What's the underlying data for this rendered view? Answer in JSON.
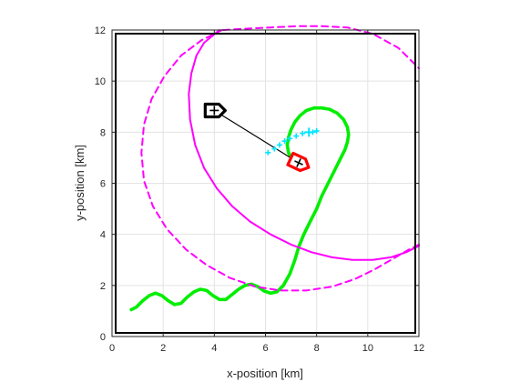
{
  "chart_data": {
    "type": "line",
    "xlabel": "x-position [km]",
    "ylabel": "y-position [km]",
    "xlim": [
      0,
      12
    ],
    "ylim": [
      0,
      12
    ],
    "xticks": [
      0,
      2,
      4,
      6,
      8,
      10,
      12
    ],
    "yticks": [
      0,
      2,
      4,
      6,
      8,
      10,
      12
    ],
    "grid": true,
    "colors": {
      "path": "#00ee00",
      "circles": "#ff00ff",
      "prediction": "#00e5ff",
      "target": "#000000",
      "ownship": "#ff0000"
    },
    "series": [
      {
        "style": "solid",
        "color": "#00ee00",
        "x": [
          0.75,
          0.95,
          1.2,
          1.45,
          1.7,
          1.95,
          2.2,
          2.45,
          2.7,
          2.95,
          3.2,
          3.45,
          3.7,
          3.95,
          4.2,
          4.45,
          4.7,
          4.95,
          5.2,
          5.45,
          5.7,
          5.95,
          6.2,
          6.45,
          6.7,
          6.95,
          7.15,
          7.3,
          7.5,
          7.75,
          8.0,
          8.2,
          8.45,
          8.7,
          8.95,
          9.1,
          9.2,
          9.25,
          9.2,
          9.05,
          8.8,
          8.5,
          8.2,
          7.9,
          7.6,
          7.35,
          7.15,
          7.0,
          6.9,
          6.85,
          6.9,
          7.05
        ],
        "y": [
          1.05,
          1.15,
          1.4,
          1.6,
          1.7,
          1.6,
          1.4,
          1.25,
          1.3,
          1.55,
          1.75,
          1.85,
          1.8,
          1.6,
          1.45,
          1.45,
          1.65,
          1.85,
          2.0,
          2.05,
          1.95,
          1.78,
          1.7,
          1.75,
          2.0,
          2.45,
          3.0,
          3.5,
          4.0,
          4.5,
          5.0,
          5.5,
          6.0,
          6.5,
          7.0,
          7.3,
          7.6,
          7.9,
          8.2,
          8.5,
          8.75,
          8.9,
          8.95,
          8.95,
          8.85,
          8.65,
          8.4,
          8.1,
          7.8,
          7.5,
          7.2,
          6.95
        ]
      },
      {
        "style": "solid",
        "color": "#ff00ff",
        "x": [
          4.2,
          3.6,
          3.3,
          3.1,
          3.0,
          3.05,
          3.25,
          3.6,
          4.1,
          4.7,
          5.4,
          6.2,
          7.0,
          7.8,
          8.6,
          9.4,
          10.2,
          10.9,
          11.5,
          12.0
        ],
        "y": [
          12.0,
          11.5,
          11.0,
          10.3,
          9.5,
          8.5,
          7.5,
          6.6,
          5.8,
          5.1,
          4.5,
          4.0,
          3.6,
          3.3,
          3.1,
          3.0,
          3.0,
          3.1,
          3.3,
          3.55
        ]
      },
      {
        "style": "dashed",
        "color": "#ff00ff",
        "x": [
          4.3,
          3.5,
          2.7,
          2.05,
          1.55,
          1.25,
          1.15,
          1.25,
          1.6,
          2.15,
          2.9,
          3.7,
          4.6,
          5.6,
          6.6,
          7.6,
          8.6,
          9.5,
          10.3,
          11.0,
          11.6,
          12.0
        ],
        "y": [
          12.0,
          11.6,
          11.0,
          10.2,
          9.3,
          8.3,
          7.2,
          6.1,
          5.1,
          4.2,
          3.4,
          2.8,
          2.3,
          1.95,
          1.8,
          1.8,
          1.95,
          2.25,
          2.65,
          3.05,
          3.4,
          3.6
        ]
      },
      {
        "style": "dashed",
        "color": "#ff00ff",
        "x": [
          4.35,
          5.2,
          6.2,
          7.2,
          8.2,
          9.2,
          10.2,
          11.2,
          12.0
        ],
        "y": [
          12.0,
          12.05,
          12.1,
          12.15,
          12.15,
          12.1,
          11.85,
          11.3,
          10.5
        ]
      },
      {
        "style": "line",
        "color": "#000000",
        "x": [
          4.0,
          7.3
        ],
        "y": [
          8.85,
          6.8
        ]
      },
      {
        "style": "scatter",
        "color": "#00e5ff",
        "x": [
          6.1,
          6.35,
          6.55,
          6.75,
          6.95,
          7.2,
          7.45,
          7.7,
          7.85,
          8.0
        ],
        "y": [
          7.2,
          7.35,
          7.5,
          7.65,
          7.75,
          7.85,
          7.95,
          8.0,
          8.0,
          8.05
        ]
      }
    ],
    "markers": [
      {
        "shape": "ship-outline",
        "color": "#000000",
        "x": 4.0,
        "y": 8.85,
        "heading": 90
      },
      {
        "shape": "ship-outline",
        "color": "#ff0000",
        "x": 7.3,
        "y": 6.8,
        "heading": 115
      },
      {
        "shape": "plus",
        "color": "#00e5ff",
        "x": 7.7,
        "y": 8.0
      }
    ]
  }
}
